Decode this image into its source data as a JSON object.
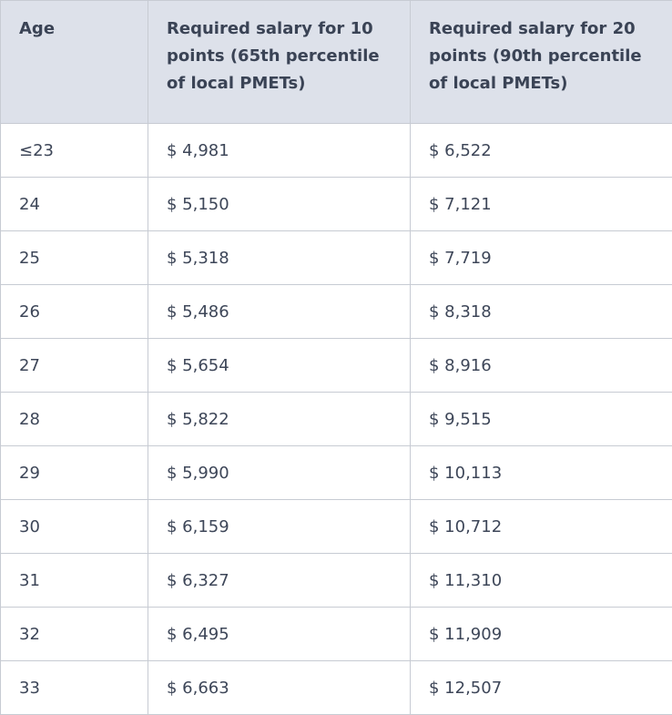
{
  "table": {
    "headers": [
      "Age",
      "Required salary for 10 points (65th percentile of local PMETs)",
      "Required salary for 20 points (90th percentile of local PMETs)"
    ],
    "rows": [
      [
        "≤23",
        "$ 4,981",
        "$ 6,522"
      ],
      [
        "24",
        "$ 5,150",
        "$ 7,121"
      ],
      [
        "25",
        "$ 5,318",
        "$ 7,719"
      ],
      [
        "26",
        "$ 5,486",
        "$ 8,318"
      ],
      [
        "27",
        "$ 5,654",
        "$ 8,916"
      ],
      [
        "28",
        "$ 5,822",
        "$ 9,515"
      ],
      [
        "29",
        "$ 5,990",
        "$ 10,113"
      ],
      [
        "30",
        "$ 6,159",
        "$ 10,712"
      ],
      [
        "31",
        "$ 6,327",
        "$ 11,310"
      ],
      [
        "32",
        "$ 6,495",
        "$ 11,909"
      ],
      [
        "33",
        "$ 6,663",
        "$ 12,507"
      ]
    ]
  }
}
